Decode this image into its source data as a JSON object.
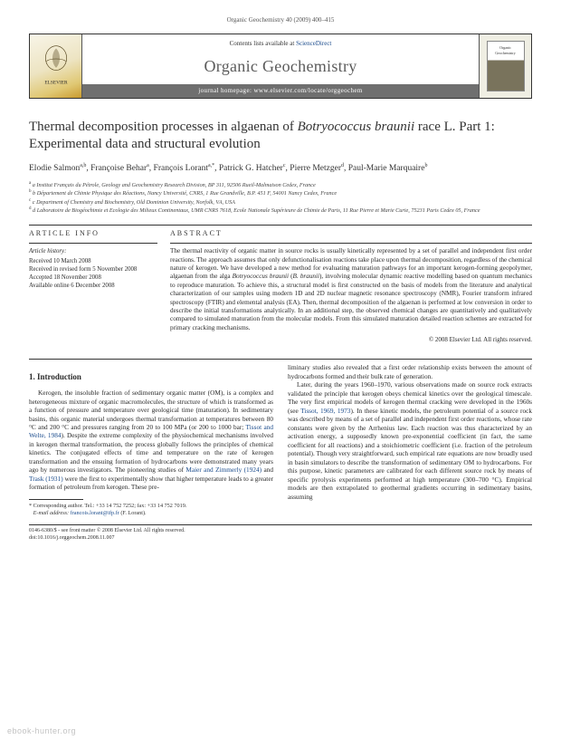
{
  "running_header": "Organic Geochemistry 40 (2009) 400–415",
  "journal_box": {
    "contents_line_prefix": "Contents lists available at ",
    "contents_link": "ScienceDirect",
    "journal_name": "Organic Geochemistry",
    "homepage_label": "journal homepage: www.elsevier.com/locate/orggeochem",
    "publisher_logo_text": "ELSEVIER",
    "cover_caption": "Organic Geochemistry"
  },
  "article": {
    "title_html": "Thermal decomposition processes in algaenan of <em>Botryococcus braunii</em> race L. Part 1: Experimental data and structural evolution",
    "authors_html": "Elodie Salmon<sup>a,b</sup>, Françoise Behar<sup>a</sup>, François Lorant<sup>a,*</sup>, Patrick G. Hatcher<sup>c</sup>, Pierre Metzger<sup>d</sup>, Paul-Marie Marquaire<sup>b</sup>",
    "affiliations": [
      "a Institut Français du Pétrole, Geology and Geochemistry Research Division, BP 311, 92506 Rueil-Malmaison Cedex, France",
      "b Département de Chimie Physique des Réactions, Nancy Université, CNRS, 1 Rue Grandville, B.P. 451 F, 54001 Nancy Cedex, France",
      "c Department of Chemistry and Biochemistry, Old Dominion University, Norfolk, VA, USA",
      "d Laboratoire de Biogéochimie et Ecologie des Milieux Continentaux, UMR CNRS 7618, Ecole Nationale Supérieure de Chimie de Paris, 11 Rue Pierre et Marie Curie, 75231 Paris Cedex 05, France"
    ]
  },
  "info_heading": "ARTICLE INFO",
  "abstract_heading": "ABSTRACT",
  "history": {
    "label": "Article history:",
    "items": [
      "Received 10 March 2008",
      "Received in revised form 5 November 2008",
      "Accepted 18 November 2008",
      "Available online 6 December 2008"
    ]
  },
  "abstract_html": "The thermal reactivity of organic matter in source rocks is usually kinetically represented by a set of parallel and independent first order reactions. The approach assumes that only defunctionalisation reactions take place upon thermal decomposition, regardless of the chemical nature of kerogen. We have developed a new method for evaluating maturation pathways for an important kerogen-forming geopolymer, algaenan from the alga <em>Botryococcus braunii</em> (<em>B. braunii</em>), involving molecular dynamic reactive modelling based on quantum mechanics to reproduce maturation. To achieve this, a structural model is first constructed on the basis of models from the literature and analytical characterization of our samples using modern 1D and 2D nuclear magnetic resonance spectroscopy (NMR), Fourier transform infrared spectroscopy (FTIR) and elemental analysis (EA). Then, thermal decomposition of the algaenan is performed at low conversion in order to describe the initial transformations analytically. In an additional step, the observed chemical changes are quantitatively and qualitatively compared to simulated maturation from the molecular models. From this simulated maturation detailed reaction schemes are extracted for primary cracking mechanisms.",
  "copyright": "© 2008 Elsevier Ltd. All rights reserved.",
  "intro_heading": "1. Introduction",
  "body": {
    "col1_p1_html": "Kerogen, the insoluble fraction of sedimentary organic matter (OM), is a complex and heterogeneous mixture of organic macromolecules, the structure of which is transformed as a function of pressure and temperature over geological time (maturation). In sedimentary basins, this organic material undergoes thermal transformation at temperatures between 80 °C and 200 °C and pressures ranging from 20 to 100 MPa (or 200 to 1000 bar; <span class=\"cite\">Tissot and Welte, 1984</span>). Despite the extreme complexity of the physiochemical mechanisms involved in kerogen thermal transformation, the process globally follows the principles of chemical kinetics. The conjugated effects of time and temperature on the rate of kerogen transformation and the ensuing formation of hydrocarbons were demonstrated many years ago by numerous investigators. The pioneering studies of <span class=\"cite\">Maier and Zimmerly (1924)</span> and <span class=\"cite\">Trask (1931)</span> were the first to experimentally show that higher temperature leads to a greater formation of petroleum from kerogen. These pre-",
    "col2_p1_html": "liminary studies also revealed that a first order relationship exists between the amount of hydrocarbons formed and their bulk rate of generation.",
    "col2_p2_html": "Later, during the years 1960–1970, various observations made on source rock extracts validated the principle that kerogen obeys chemical kinetics over the geological timescale. The very first empirical models of kerogen thermal cracking were developed in the 1960s (see <span class=\"cite\">Tissot, 1969, 1973</span>). In these kinetic models, the petroleum potential of a source rock was described by means of a set of parallel and independent first order reactions, whose rate constants were given by the Arrhenius law. Each reaction was thus characterized by an activation energy, a supposedly known pre-exponential coefficient (in fact, the same coefficient for all reactions) and a stoichiometric coefficient (i.e. fraction of the petroleum potential). Though very straightforward, such empirical rate equations are now broadly used in basin simulators to describe the transformation of sedimentary OM to hydrocarbons. For this purpose, kinetic parameters are calibrated for each different source rock by means of specific pyrolysis experiments performed at high temperature (300–700 °C). Empirical models are then extrapolated to geothermal gradients occurring in sedimentary basins, assuming"
  },
  "footnotes": {
    "corr": "* Corresponding author. Tel.: +33 14 752 7252; fax: +33 14 752 7019.",
    "email_label": "E-mail address:",
    "email": "francois.lorant@ifp.fr",
    "email_suffix": "(F. Lorant)."
  },
  "footer": {
    "left": "0146-6380/$ - see front matter © 2008 Elsevier Ltd. All rights reserved.",
    "doi": "doi:10.1016/j.orggeochem.2008.11.007"
  },
  "watermark": "ebook-hunter.org",
  "colors": {
    "link": "#1a4b8c",
    "text": "#2a2a2a",
    "header_bar": "#6f6f6f",
    "elsevier_gradient_end": "#c99a2e"
  }
}
